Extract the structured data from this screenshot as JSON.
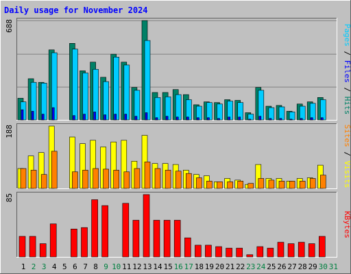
{
  "chart_data": {
    "type": "bar",
    "title": "Daily usage for November 2024",
    "days": [
      "1",
      "2",
      "3",
      "4",
      "5",
      "6",
      "7",
      "8",
      "9",
      "10",
      "11",
      "12",
      "13",
      "14",
      "15",
      "16",
      "17",
      "18",
      "19",
      "20",
      "21",
      "22",
      "23",
      "24",
      "25",
      "26",
      "27",
      "28",
      "29",
      "30",
      "31"
    ],
    "weekend_days": [
      "2",
      "3",
      "9",
      "10",
      "16",
      "17",
      "23",
      "24",
      "30",
      "31"
    ],
    "panels": [
      {
        "id": "hits-files-pages",
        "ymax_label": "688",
        "ymax": 688,
        "axis_label_parts": [
          {
            "text": "Pages",
            "color": "#00ccff"
          },
          {
            "text": " / ",
            "color": "#000000"
          },
          {
            "text": "Files",
            "color": "#0000ff"
          },
          {
            "text": " / ",
            "color": "#000000"
          },
          {
            "text": "Hits",
            "color": "#008066"
          }
        ],
        "series": [
          {
            "name": "Hits",
            "color": "#008066",
            "values": [
              150,
              285,
              260,
              485,
              0,
              530,
              340,
              400,
              295,
              455,
              400,
              225,
              688,
              190,
              190,
              210,
              175,
              105,
              125,
              120,
              140,
              135,
              50,
              225,
              95,
              100,
              60,
              110,
              125,
              155,
              0
            ]
          },
          {
            "name": "Files",
            "color": "#00ccff",
            "values": [
              125,
              260,
              255,
              465,
              0,
              490,
              325,
              350,
              265,
              435,
              380,
              205,
              550,
              155,
              160,
              175,
              140,
              95,
              120,
              110,
              130,
              120,
              40,
              205,
              85,
              90,
              55,
              95,
              115,
              140,
              0
            ]
          },
          {
            "name": "Pages",
            "color": "#0000ff",
            "values": [
              70,
              60,
              40,
              85,
              0,
              30,
              40,
              55,
              35,
              40,
              40,
              25,
              50,
              15,
              25,
              20,
              20,
              15,
              15,
              10,
              20,
              20,
              5,
              25,
              10,
              10,
              5,
              10,
              15,
              15,
              0
            ]
          }
        ]
      },
      {
        "id": "visits-sites",
        "ymax_label": "188",
        "ymax": 188,
        "axis_label_parts": [
          {
            "text": "Sites",
            "color": "#ff8000"
          },
          {
            "text": " / ",
            "color": "#000000"
          },
          {
            "text": "Visits",
            "color": "#ffff00"
          }
        ],
        "series": [
          {
            "name": "Visits",
            "color": "#ffff00",
            "values": [
              60,
              98,
              108,
              188,
              0,
              155,
              135,
              145,
              125,
              140,
              145,
              82,
              160,
              75,
              75,
              72,
              55,
              42,
              38,
              20,
              30,
              25,
              12,
              72,
              30,
              30,
              22,
              30,
              32,
              70,
              0
            ]
          },
          {
            "name": "Sites",
            "color": "#ff8000",
            "values": [
              60,
              55,
              42,
              112,
              0,
              50,
              55,
              60,
              58,
              55,
              50,
              60,
              80,
              60,
              55,
              52,
              45,
              32,
              22,
              20,
              20,
              22,
              15,
              30,
              25,
              22,
              22,
              22,
              30,
              40,
              0
            ]
          }
        ]
      },
      {
        "id": "kbytes",
        "ymax_label": "85",
        "ymax": 85,
        "axis_label_parts": [
          {
            "text": "KBytes",
            "color": "#ff0000"
          }
        ],
        "series": [
          {
            "name": "KBytes",
            "color": "#ff0000",
            "values": [
              28,
              28,
              18,
              45,
              0,
              38,
              40,
              78,
              70,
              0,
              73,
              50,
              85,
              50,
              50,
              50,
              26,
              16,
              16,
              14,
              12,
              12,
              3,
              14,
              12,
              20,
              18,
              20,
              18,
              28,
              0
            ]
          }
        ]
      }
    ]
  }
}
